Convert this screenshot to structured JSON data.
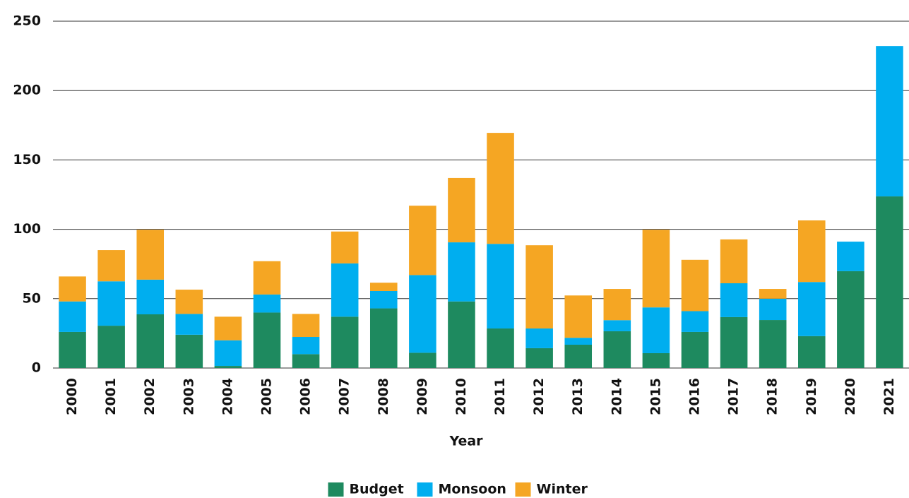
{
  "chart_data": {
    "type": "bar",
    "stacked": true,
    "x_label": "Year",
    "categories": [
      "2000",
      "2001",
      "2002",
      "2003",
      "2004",
      "2005",
      "2006",
      "2007",
      "2008",
      "2009",
      "2010",
      "2011",
      "2012",
      "2013",
      "2014",
      "2015",
      "2016",
      "2017",
      "2018",
      "2019",
      "2020",
      "2021"
    ],
    "series": [
      {
        "name": "Budget",
        "color": "#1e8a5f",
        "values": [
          26,
          30.5,
          38.7,
          24,
          1.5,
          40,
          10,
          37,
          43,
          11,
          48,
          28.5,
          14.3,
          16.8,
          26.5,
          10.7,
          26,
          36.7,
          34.6,
          23,
          69.8,
          123.7
        ]
      },
      {
        "name": "Monsoon",
        "color": "#00aeef",
        "values": [
          22,
          32,
          25,
          15,
          18.5,
          13,
          12.4,
          38.4,
          12.5,
          56,
          42.6,
          61,
          14.2,
          5,
          8,
          33,
          15,
          24.4,
          15.4,
          39,
          21.3,
          108.4
        ]
      },
      {
        "name": "Winter",
        "color": "#f5a623",
        "values": [
          18,
          22.5,
          36,
          17.5,
          17,
          24,
          16.6,
          23,
          6,
          50,
          46.4,
          80,
          60,
          30.5,
          22.5,
          56,
          37,
          31.6,
          7,
          44.4,
          0,
          0
        ]
      }
    ],
    "ylim": [
      0,
      250
    ],
    "yticks": [
      0,
      50,
      100,
      150,
      200,
      250
    ],
    "grid": true,
    "legend": "bottom"
  }
}
